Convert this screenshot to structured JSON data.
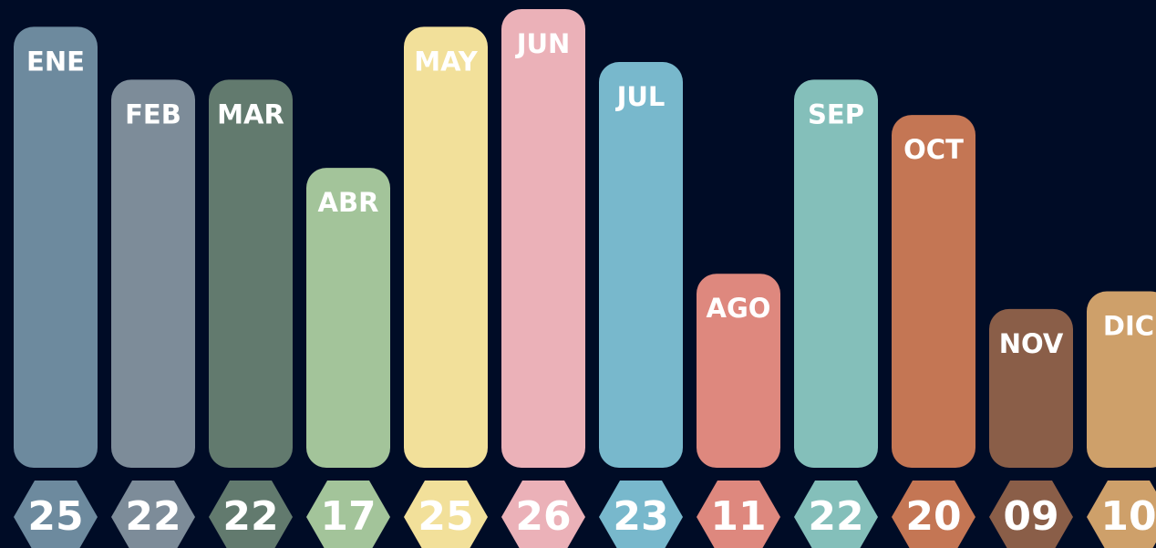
{
  "chart_data": {
    "type": "bar",
    "categories": [
      "ENE",
      "FEB",
      "MAR",
      "ABR",
      "MAY",
      "JUN",
      "JUL",
      "AGO",
      "SEP",
      "OCT",
      "NOV",
      "DIC"
    ],
    "values": [
      25,
      22,
      22,
      17,
      25,
      26,
      23,
      11,
      22,
      20,
      9,
      10
    ],
    "value_labels": [
      "25",
      "22",
      "22",
      "17",
      "25",
      "26",
      "23",
      "11",
      "22",
      "20",
      "09",
      "10"
    ],
    "colors": [
      "#6d8a9e",
      "#7d8c99",
      "#627a6e",
      "#a3c49a",
      "#f2e09a",
      "#ebb1b8",
      "#78b8cc",
      "#de887e",
      "#84bfba",
      "#c47654",
      "#8a5e48",
      "#cea06a"
    ],
    "ylim": [
      0,
      26
    ]
  }
}
